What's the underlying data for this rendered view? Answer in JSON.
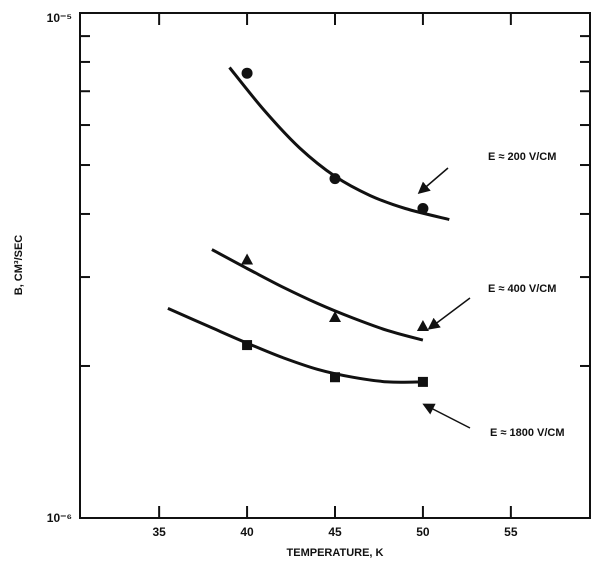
{
  "chart_data": {
    "type": "scatter",
    "xlabel": "TEMPERATURE, K",
    "ylabel": "B, CM³/SEC",
    "xlim": [
      30.5,
      59.5
    ],
    "ylim": [
      1e-06,
      1e-05
    ],
    "yscale": "log",
    "xticks": [
      35,
      40,
      45,
      50,
      55
    ],
    "yticks": [
      "10⁻⁶",
      "10⁻⁵"
    ],
    "grid": false,
    "series": [
      {
        "name": "E ≈ 200 V/CM",
        "marker": "circle",
        "x": [
          40,
          45,
          50
        ],
        "y": [
          7.6e-06,
          4.7e-06,
          4.1e-06
        ],
        "fit_x": [
          39,
          41,
          43,
          45,
          47,
          49,
          51.5
        ],
        "fit_y": [
          7.8e-06,
          6.4e-06,
          5.4e-06,
          4.75e-06,
          4.35e-06,
          4.1e-06,
          3.9e-06
        ]
      },
      {
        "name": "E ≈ 400 V/CM",
        "marker": "triangle",
        "x": [
          40,
          45,
          50
        ],
        "y": [
          3.25e-06,
          2.5e-06,
          2.4e-06
        ],
        "fit_x": [
          38,
          40,
          42,
          44,
          46,
          48,
          50
        ],
        "fit_y": [
          3.4e-06,
          3.12e-06,
          2.87e-06,
          2.66e-06,
          2.49e-06,
          2.35e-06,
          2.25e-06
        ]
      },
      {
        "name": "E ≈ 1800 V/CM",
        "marker": "square",
        "x": [
          40,
          45,
          50
        ],
        "y": [
          2.2e-06,
          1.9e-06,
          1.86e-06
        ],
        "fit_x": [
          35.5,
          38,
          40,
          42,
          44,
          46,
          48,
          50
        ],
        "fit_y": [
          2.6e-06,
          2.38e-06,
          2.22e-06,
          2.08e-06,
          1.97e-06,
          1.9e-06,
          1.86e-06,
          1.86e-06
        ]
      }
    ]
  }
}
